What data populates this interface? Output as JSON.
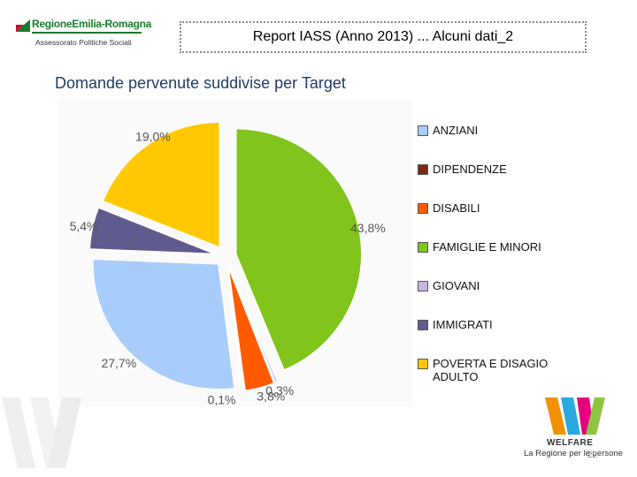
{
  "logo": {
    "name": "RegioneEmilia-Romagna",
    "subtitle": "Assessorato Politiche Sociali"
  },
  "header": {
    "title": "Report IASS (Anno 2013) ... Alcuni dati_2"
  },
  "chart_data": {
    "type": "pie",
    "title": "Domande pervenute suddivise per Target",
    "categories": [
      "ANZIANI",
      "DIPENDENZE",
      "DISABILI",
      "FAMIGLIE E MINORI",
      "GIOVANI",
      "IMMIGRATI",
      "POVERTA E DISAGIO ADULTO"
    ],
    "slices": [
      {
        "label": "FAMIGLIE E MINORI",
        "value": 43.8,
        "value_label": "43,8%",
        "color": "#80c41c"
      },
      {
        "label": "GIOVANI",
        "value": 0.3,
        "value_label": "0,3%",
        "color": "#c6b6e2"
      },
      {
        "label": "DISABILI",
        "value": 3.8,
        "value_label": "3,8%",
        "color": "#ff5a00"
      },
      {
        "label": "DIPENDENZE",
        "value": 0.1,
        "value_label": "0,1%",
        "color": "#7a2a14"
      },
      {
        "label": "ANZIANI",
        "value": 27.7,
        "value_label": "27,7%",
        "color": "#a8cdfa"
      },
      {
        "label": "IMMIGRATI",
        "value": 5.4,
        "value_label": "5,4%",
        "color": "#5f5b8e"
      },
      {
        "label": "POVERTA E DISAGIO ADULTO",
        "value": 19.0,
        "value_label": "19,0%",
        "color": "#ffc800"
      }
    ],
    "legend": [
      {
        "label": "ANZIANI",
        "color": "#a8cdfa"
      },
      {
        "label": "DIPENDENZE",
        "color": "#7a2a14"
      },
      {
        "label": "DISABILI",
        "color": "#ff5a00"
      },
      {
        "label": "FAMIGLIE E MINORI",
        "color": "#80c41c"
      },
      {
        "label": "GIOVANI",
        "color": "#c6b6e2"
      },
      {
        "label": "IMMIGRATI",
        "color": "#5f5b8e"
      },
      {
        "label": "POVERTA  E DISAGIO ADULTO",
        "color": "#ffc800"
      }
    ],
    "legend_position": "right",
    "exploded": true
  },
  "branding": {
    "word": "WELFARE",
    "tagline": "La Regione per le persone"
  },
  "page": {
    "number": "22"
  }
}
